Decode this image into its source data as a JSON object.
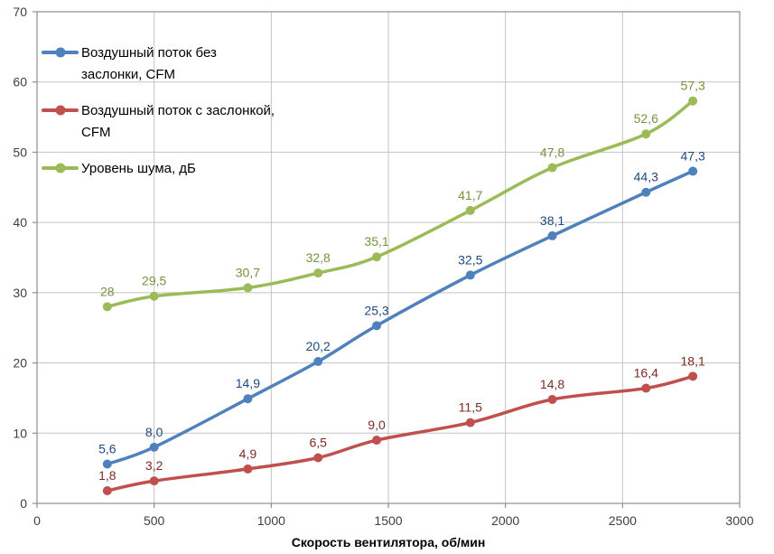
{
  "chart_data": {
    "type": "line",
    "title": "",
    "xlabel": "Скорость вентилятора, об/мин",
    "ylabel": "",
    "xlim": [
      0,
      3000
    ],
    "ylim": [
      0,
      70
    ],
    "x_ticks": [
      0,
      500,
      1000,
      1500,
      2000,
      2500,
      3000
    ],
    "y_ticks": [
      0,
      10,
      20,
      30,
      40,
      50,
      60,
      70
    ],
    "grid": true,
    "smooth": true,
    "legend_position": "top-left-inside",
    "x": [
      300,
      500,
      900,
      1200,
      1450,
      1850,
      2200,
      2600,
      2800
    ],
    "series": [
      {
        "name": "Воздушный поток без заслонки, CFM",
        "color": "#4F81BD",
        "label_color": "#1F497D",
        "values": [
          5.6,
          8.0,
          14.9,
          20.2,
          25.3,
          32.5,
          38.1,
          44.3,
          47.3
        ],
        "labels": [
          "5,6",
          "8,0",
          "14,9",
          "20,2",
          "25,3",
          "32,5",
          "38,1",
          "44,3",
          "47,3"
        ]
      },
      {
        "name": "Воздушный поток с заслонкой, CFM",
        "color": "#C0504D",
        "label_color": "#7B2C26",
        "values": [
          1.8,
          3.2,
          4.9,
          6.5,
          9.0,
          11.5,
          14.8,
          16.4,
          18.1
        ],
        "labels": [
          "1,8",
          "3,2",
          "4,9",
          "6,5",
          "9,0",
          "11,5",
          "14,8",
          "16,4",
          "18,1"
        ]
      },
      {
        "name": "Уровень шума, дБ",
        "color": "#9BBB59",
        "label_color": "#76923C",
        "values": [
          28,
          29.5,
          30.7,
          32.8,
          35.1,
          41.7,
          47.8,
          52.6,
          57.3
        ],
        "labels": [
          "28",
          "29,5",
          "30,7",
          "32,8",
          "35,1",
          "41,7",
          "47,8",
          "52,6",
          "57,3"
        ]
      }
    ],
    "colors": {
      "gridline": "#C3C3C3",
      "axis": "#8E8E8E",
      "tick_label": "#3F3F3F",
      "axis_title": "#000000",
      "background": "#FFFFFF"
    }
  }
}
